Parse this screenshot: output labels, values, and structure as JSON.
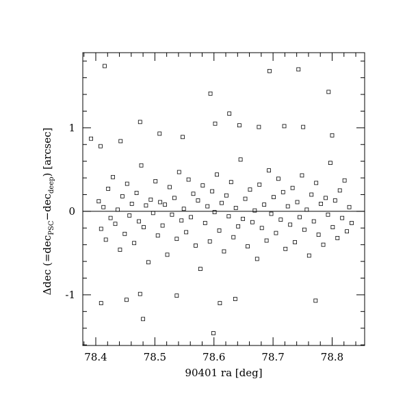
{
  "chart_data": {
    "type": "scatter",
    "xlabel": "90401 ra [deg]",
    "ylabel_parts": [
      "Δdec (=dec",
      "PSC",
      "−dec",
      "deep",
      ") [arcsec]"
    ],
    "xlim": [
      78.378,
      78.855
    ],
    "ylim": [
      -1.607,
      1.9
    ],
    "xticks": [
      78.4,
      78.5,
      78.6,
      78.7,
      78.8
    ],
    "yticks": [
      -1,
      0,
      1
    ],
    "xminorticks": [
      78.38,
      78.42,
      78.44,
      78.46,
      78.48,
      78.52,
      78.54,
      78.56,
      78.58,
      78.62,
      78.64,
      78.66,
      78.68,
      78.72,
      78.74,
      78.76,
      78.78,
      78.82,
      78.84
    ],
    "yminorticks": [
      -1.6,
      -1.4,
      -1.2,
      -0.8,
      -0.6,
      -0.4,
      -0.2,
      0.2,
      0.4,
      0.6,
      0.8,
      1.2,
      1.4,
      1.6,
      1.8
    ],
    "hline": 0,
    "color": "#000000",
    "x": [
      78.405,
      78.409,
      78.413,
      78.417,
      78.421,
      78.425,
      78.429,
      78.433,
      78.437,
      78.441,
      78.445,
      78.449,
      78.453,
      78.457,
      78.461,
      78.465,
      78.469,
      78.473,
      78.477,
      78.481,
      78.485,
      78.489,
      78.493,
      78.497,
      78.501,
      78.505,
      78.509,
      78.513,
      78.517,
      78.521,
      78.525,
      78.529,
      78.533,
      78.537,
      78.541,
      78.545,
      78.549,
      78.553,
      78.557,
      78.561,
      78.565,
      78.569,
      78.573,
      78.577,
      78.581,
      78.585,
      78.589,
      78.593,
      78.597,
      78.601,
      78.605,
      78.609,
      78.613,
      78.617,
      78.621,
      78.625,
      78.629,
      78.633,
      78.637,
      78.641,
      78.645,
      78.649,
      78.653,
      78.657,
      78.661,
      78.665,
      78.669,
      78.673,
      78.677,
      78.681,
      78.685,
      78.689,
      78.693,
      78.697,
      78.701,
      78.705,
      78.709,
      78.713,
      78.717,
      78.721,
      78.725,
      78.729,
      78.733,
      78.737,
      78.741,
      78.745,
      78.749,
      78.753,
      78.757,
      78.761,
      78.765,
      78.769,
      78.773,
      78.777,
      78.781,
      78.785,
      78.789,
      78.793,
      78.797,
      78.801,
      78.805,
      78.809,
      78.813,
      78.817,
      78.821,
      78.825,
      78.829,
      78.833,
      78.415,
      78.694,
      78.743,
      78.594,
      78.794,
      78.626,
      78.602,
      78.475,
      78.508,
      78.676,
      78.719,
      78.751,
      78.643,
      78.392,
      78.408,
      78.442,
      78.547,
      78.8,
      78.599,
      78.48,
      78.409,
      78.452,
      78.61,
      78.636,
      78.772,
      78.475,
      78.537
    ],
    "y": [
      0.12,
      -0.21,
      0.05,
      -0.34,
      0.27,
      -0.08,
      0.41,
      -0.15,
      0.02,
      -0.46,
      0.18,
      -0.27,
      0.33,
      -0.05,
      0.09,
      -0.38,
      0.22,
      -0.12,
      0.55,
      -0.19,
      0.07,
      -0.61,
      0.14,
      -0.02,
      0.36,
      -0.29,
      0.11,
      -0.17,
      0.08,
      -0.52,
      0.29,
      -0.04,
      0.16,
      -0.33,
      0.47,
      -0.11,
      0.03,
      -0.25,
      0.38,
      -0.07,
      0.21,
      -0.41,
      0.13,
      -0.69,
      0.31,
      -0.14,
      0.06,
      -0.36,
      0.24,
      -0.01,
      0.44,
      -0.23,
      0.1,
      -0.48,
      0.19,
      -0.06,
      0.35,
      -0.31,
      0.04,
      -0.18,
      0.62,
      -0.09,
      0.15,
      -0.42,
      0.26,
      -0.13,
      0.01,
      -0.57,
      0.32,
      -0.2,
      0.08,
      -0.35,
      0.49,
      -0.03,
      0.17,
      -0.26,
      0.39,
      -0.1,
      0.23,
      -0.45,
      0.06,
      -0.16,
      0.28,
      -0.37,
      0.11,
      -0.07,
      0.43,
      -0.22,
      0.02,
      -0.53,
      0.2,
      -0.12,
      0.34,
      -0.28,
      0.09,
      -0.4,
      0.16,
      -0.04,
      0.58,
      -0.19,
      0.13,
      -0.32,
      0.25,
      -0.08,
      0.37,
      -0.24,
      0.05,
      -0.14,
      1.74,
      1.68,
      1.7,
      1.41,
      1.43,
      1.17,
      1.05,
      1.07,
      0.93,
      1.01,
      1.02,
      1.01,
      1.03,
      0.87,
      0.78,
      0.84,
      0.89,
      0.91,
      -1.46,
      -1.29,
      -1.1,
      -1.06,
      -1.1,
      -1.05,
      -1.07,
      -0.99,
      -1.01
    ]
  }
}
